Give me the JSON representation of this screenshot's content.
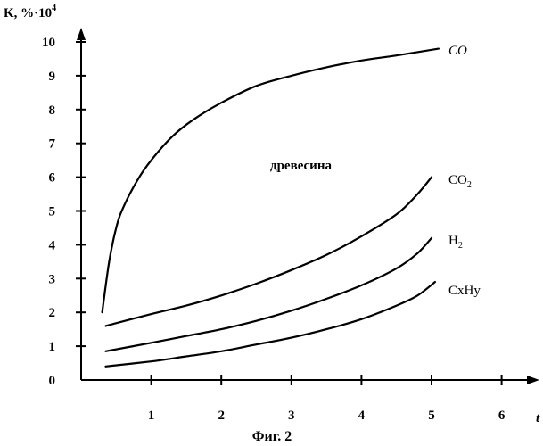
{
  "chart_data": {
    "type": "line",
    "ylabel": "K, %·10",
    "ylabel_sup": "4",
    "xlabel": "t",
    "xlim": [
      0,
      6
    ],
    "ylim": [
      0,
      10
    ],
    "x_ticks": [
      1,
      2,
      3,
      4,
      5,
      6
    ],
    "y_ticks": [
      0,
      1,
      2,
      3,
      4,
      5,
      6,
      7,
      8,
      9,
      10
    ],
    "grid": false,
    "annotation": "древесина",
    "caption": "Фиг. 2",
    "series": [
      {
        "name": "CO",
        "x": [
          0.3,
          0.4,
          0.5,
          0.6,
          0.8,
          1.0,
          1.3,
          1.6,
          2.0,
          2.5,
          3.0,
          3.5,
          4.0,
          4.5,
          5.1
        ],
        "y": [
          2.0,
          3.5,
          4.5,
          5.1,
          5.9,
          6.5,
          7.2,
          7.7,
          8.2,
          8.7,
          9.0,
          9.25,
          9.45,
          9.6,
          9.8
        ]
      },
      {
        "name": "CO",
        "name_sub": "2",
        "x": [
          0.35,
          1.0,
          1.5,
          2.0,
          2.5,
          3.0,
          3.5,
          4.0,
          4.5,
          4.8,
          5.0
        ],
        "y": [
          1.6,
          1.95,
          2.2,
          2.5,
          2.85,
          3.25,
          3.7,
          4.25,
          4.9,
          5.5,
          6.0
        ]
      },
      {
        "name": "H",
        "name_sub": "2",
        "x": [
          0.35,
          1.0,
          1.5,
          2.0,
          2.5,
          3.0,
          3.5,
          4.0,
          4.5,
          4.8,
          5.0
        ],
        "y": [
          0.85,
          1.1,
          1.3,
          1.5,
          1.75,
          2.05,
          2.4,
          2.8,
          3.3,
          3.75,
          4.2
        ]
      },
      {
        "name": "CxHy",
        "x": [
          0.35,
          1.0,
          1.5,
          2.0,
          2.5,
          3.0,
          3.5,
          4.0,
          4.5,
          4.8,
          5.05
        ],
        "y": [
          0.4,
          0.55,
          0.7,
          0.85,
          1.05,
          1.25,
          1.5,
          1.8,
          2.2,
          2.5,
          2.9
        ]
      }
    ]
  }
}
